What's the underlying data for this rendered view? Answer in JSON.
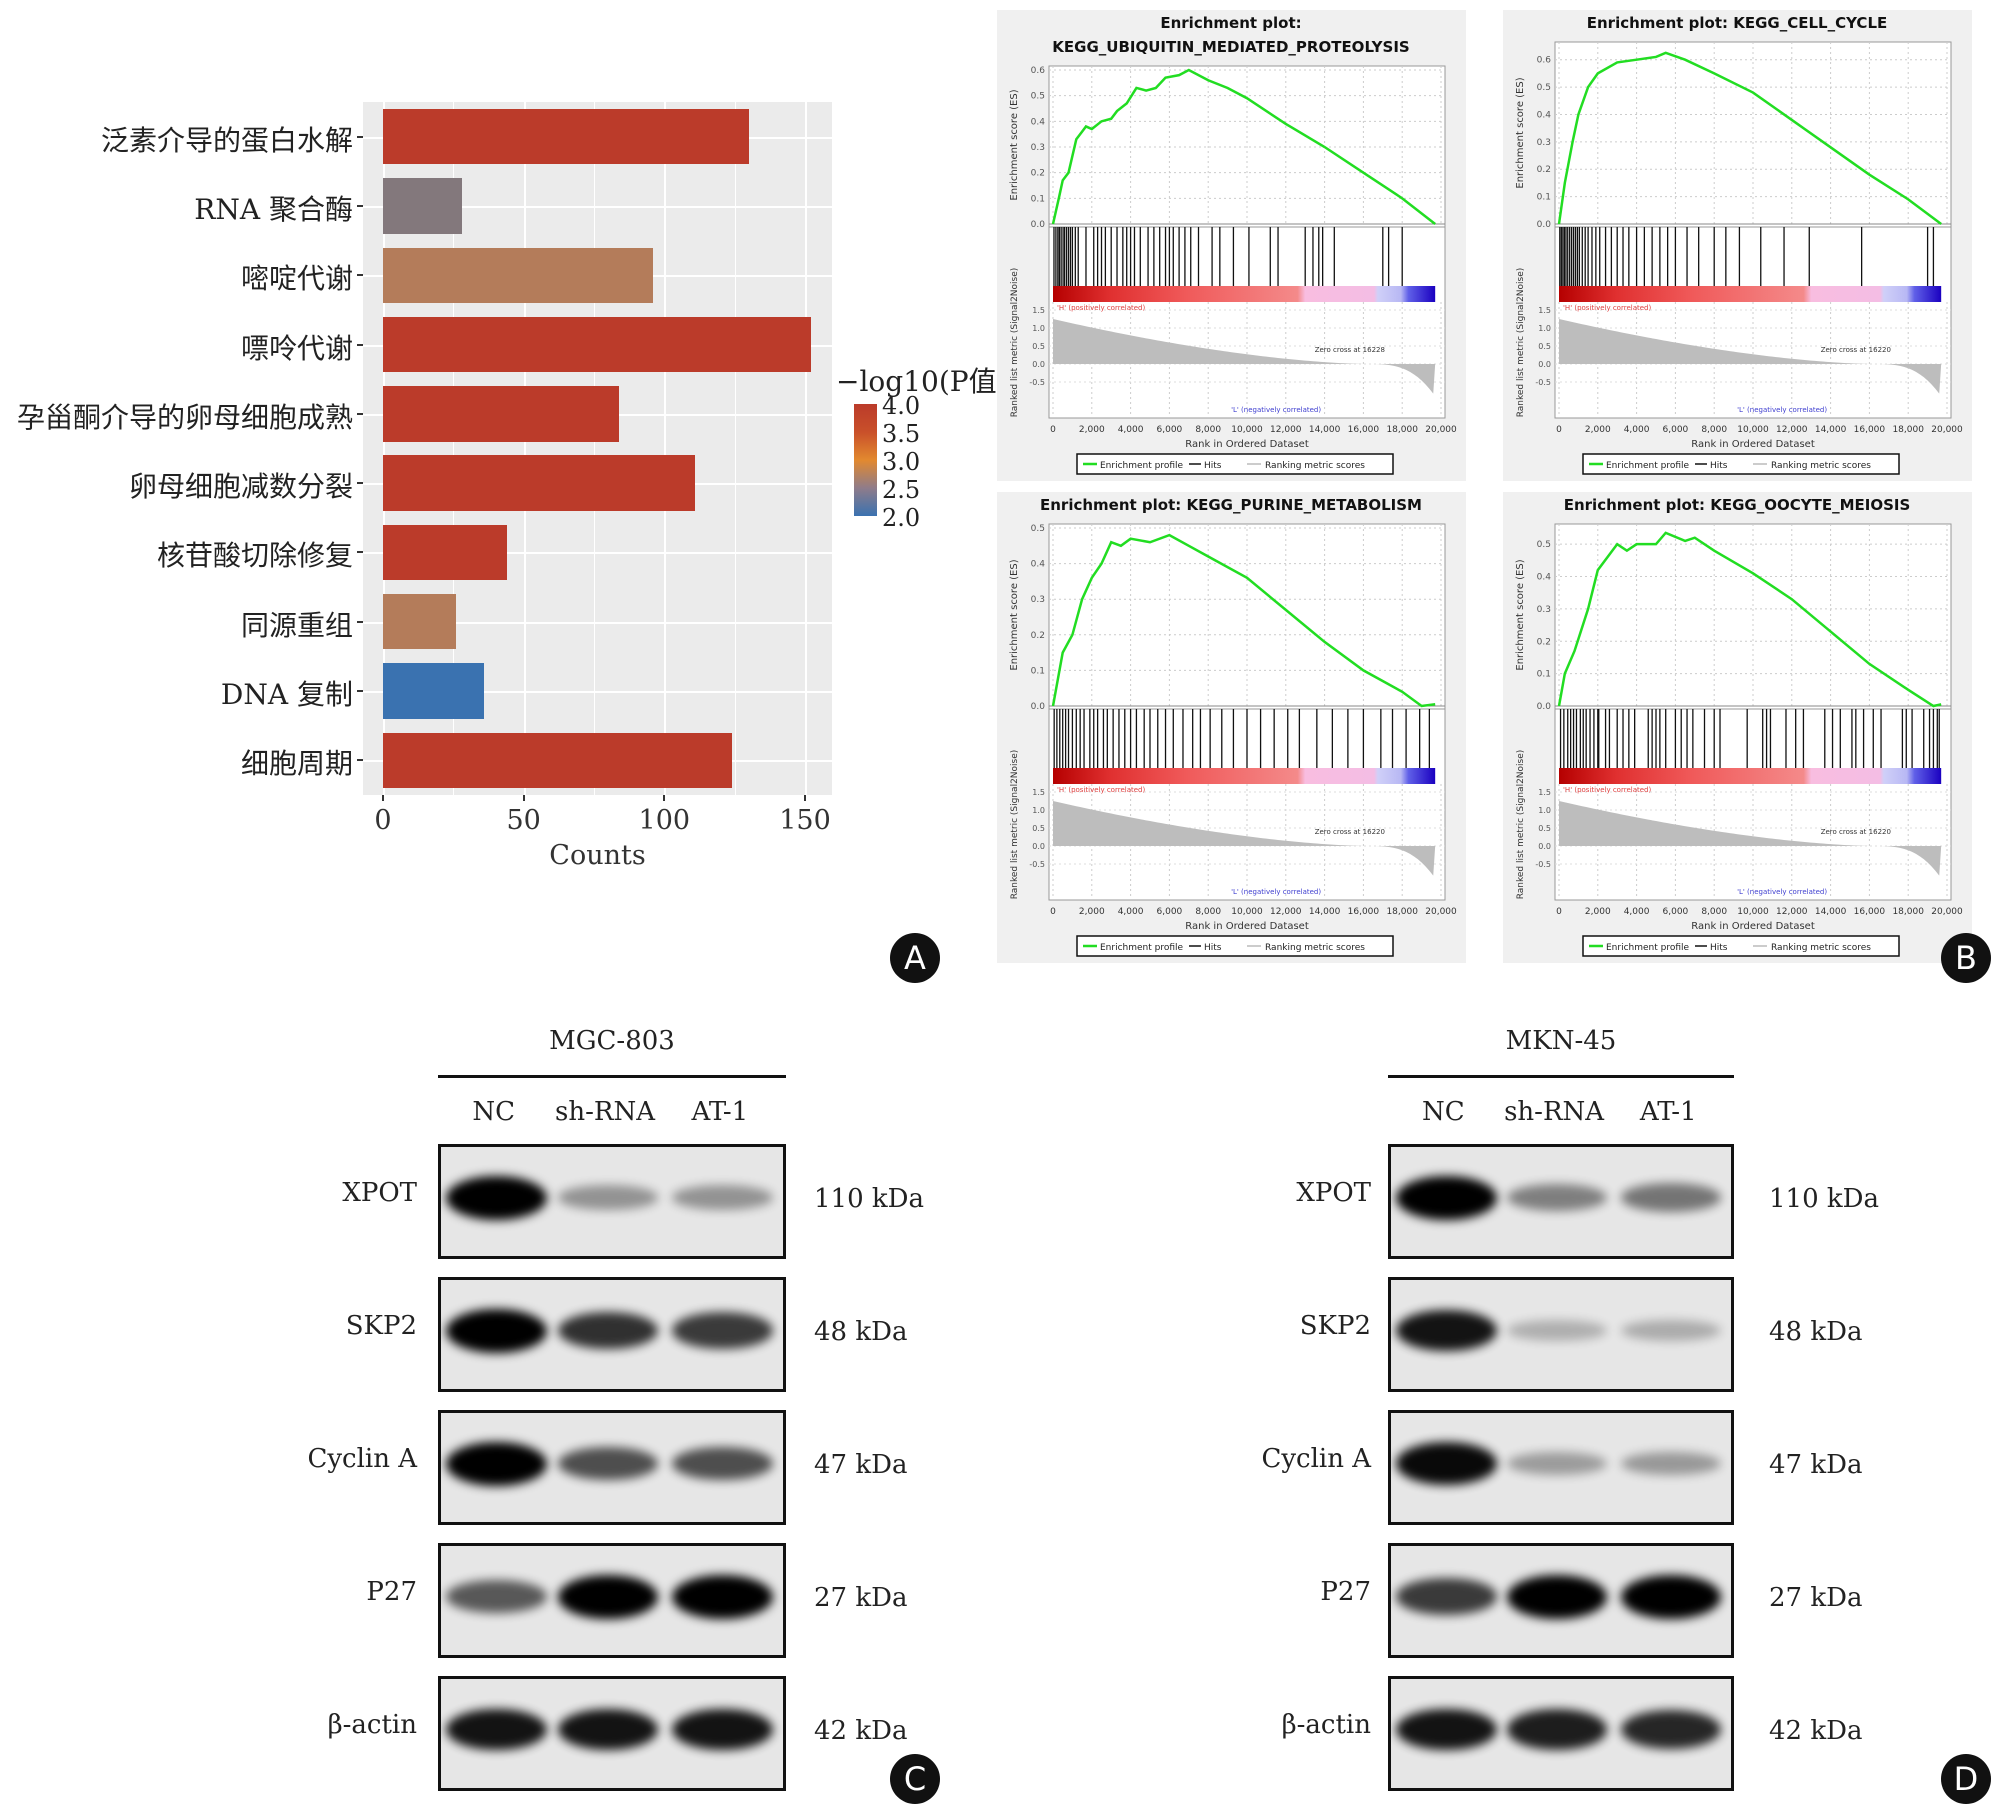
{
  "panel_labels": {
    "a": "A",
    "b": "B",
    "c": "C",
    "d": "D"
  },
  "chart_data": [
    {
      "type": "bar",
      "orientation": "horizontal",
      "categories": [
        "泛素介导的蛋白水解",
        "RNA 聚合酶",
        "嘧啶代谢",
        "嘌呤代谢",
        "孕甾酮介导的卵母细胞成熟",
        "卵母细胞减数分裂",
        "核苷酸切除修复",
        "同源重组",
        "DNA 复制",
        "细胞周期"
      ],
      "values": [
        130,
        28,
        96,
        152,
        84,
        111,
        44,
        26,
        36,
        124
      ],
      "color_values": [
        4.0,
        2.6,
        3.0,
        4.0,
        4.0,
        4.0,
        4.0,
        3.0,
        2.0,
        4.0
      ],
      "xlabel": "Counts",
      "xlim": [
        -7,
        160
      ],
      "xticks": [
        "0",
        "50",
        "100",
        "150"
      ],
      "xtick_values": [
        0,
        50,
        100,
        150
      ],
      "legend": {
        "title": "−log10(P值)",
        "ticks": [
          "4.0",
          "3.5",
          "3.0",
          "2.5",
          "2.0"
        ],
        "range": [
          2.0,
          4.0
        ],
        "placement": "right"
      },
      "colors": {
        "high": "#bb3b2a",
        "mid": "#e2892f",
        "low": "#3a72b0",
        "panel_bg": "#ebebeb"
      }
    },
    {
      "type": "line",
      "title_lines": [
        "Enrichment plot:",
        "KEGG_UBIQUITIN_MEDIATED_PROTEOLYSIS"
      ],
      "ylabel_top": "Enrichment score (ES)",
      "ylabel_bottom": "Ranked list metric (Signal2Noise)",
      "xlabel": "Rank in Ordered Dataset",
      "yticks": [
        "0.0",
        "0.1",
        "0.2",
        "0.3",
        "0.4",
        "0.5",
        "0.6"
      ],
      "ymax": 0.6,
      "metric_ticks": [
        "1.5",
        "1.0",
        "0.5",
        "0.0",
        "-0.5"
      ],
      "xticks": [
        "0",
        "2,000",
        "4,000",
        "6,000",
        "8,000",
        "10,000",
        "12,000",
        "14,000",
        "16,000",
        "18,000",
        "20,000"
      ],
      "pos_label": "'H' (positively correlated)",
      "neg_label": "'L' (negatively correlated)",
      "zero_cross": "Zero cross at 16228",
      "legend": [
        "Enrichment profile",
        "Hits",
        "Ranking metric scores"
      ],
      "es": [
        [
          0,
          0
        ],
        [
          300,
          0.1
        ],
        [
          500,
          0.17
        ],
        [
          800,
          0.2
        ],
        [
          1200,
          0.33
        ],
        [
          1500,
          0.36
        ],
        [
          1700,
          0.38
        ],
        [
          2000,
          0.37
        ],
        [
          2500,
          0.4
        ],
        [
          3000,
          0.41
        ],
        [
          3300,
          0.44
        ],
        [
          3800,
          0.47
        ],
        [
          4300,
          0.53
        ],
        [
          4800,
          0.52
        ],
        [
          5300,
          0.53
        ],
        [
          5800,
          0.57
        ],
        [
          6500,
          0.58
        ],
        [
          7000,
          0.6
        ],
        [
          8000,
          0.56
        ],
        [
          9000,
          0.53
        ],
        [
          10000,
          0.49
        ],
        [
          12000,
          0.39
        ],
        [
          14000,
          0.3
        ],
        [
          16000,
          0.2
        ],
        [
          18000,
          0.1
        ],
        [
          19700,
          0
        ]
      ],
      "hits": [
        50,
        150,
        250,
        330,
        420,
        520,
        600,
        700,
        800,
        900,
        1000,
        1150,
        1300,
        1700,
        2100,
        2300,
        2500,
        2700,
        3000,
        3300,
        3600,
        3800,
        4000,
        4200,
        4500,
        4900,
        5200,
        5500,
        5800,
        6000,
        6200,
        6500,
        6800,
        7100,
        7500,
        8200,
        8600,
        9300,
        10100,
        11200,
        11600,
        13000,
        13400,
        13700,
        13900,
        14500,
        17000,
        17300,
        18000
      ]
    },
    {
      "type": "line",
      "title_lines": [
        "Enrichment plot: KEGG_CELL_CYCLE"
      ],
      "ylabel_top": "Enrichment score (ES)",
      "ylabel_bottom": "Ranked list metric (Signal2Noise)",
      "xlabel": "Rank in Ordered Dataset",
      "yticks": [
        "0.0",
        "0.1",
        "0.2",
        "0.3",
        "0.4",
        "0.5",
        "0.6"
      ],
      "ymax": 0.65,
      "metric_ticks": [
        "1.5",
        "1.0",
        "0.5",
        "0.0",
        "-0.5"
      ],
      "xticks": [
        "0",
        "2,000",
        "4,000",
        "6,000",
        "8,000",
        "10,000",
        "12,000",
        "14,000",
        "16,000",
        "18,000",
        "20,000"
      ],
      "pos_label": "'H' (positively correlated)",
      "neg_label": "'L' (negatively correlated)",
      "zero_cross": "Zero cross at 16220",
      "legend": [
        "Enrichment profile",
        "Hits",
        "Ranking metric scores"
      ],
      "es": [
        [
          0,
          0
        ],
        [
          300,
          0.15
        ],
        [
          700,
          0.3
        ],
        [
          1000,
          0.4
        ],
        [
          1500,
          0.5
        ],
        [
          2000,
          0.55
        ],
        [
          3000,
          0.59
        ],
        [
          4000,
          0.6
        ],
        [
          5000,
          0.61
        ],
        [
          5500,
          0.625
        ],
        [
          6500,
          0.6
        ],
        [
          8000,
          0.55
        ],
        [
          10000,
          0.48
        ],
        [
          12000,
          0.38
        ],
        [
          14000,
          0.28
        ],
        [
          16000,
          0.18
        ],
        [
          18000,
          0.09
        ],
        [
          19700,
          0
        ]
      ],
      "hits": [
        40,
        120,
        200,
        280,
        360,
        450,
        550,
        650,
        750,
        850,
        950,
        1050,
        1200,
        1350,
        1500,
        1700,
        1900,
        2100,
        2400,
        2700,
        3000,
        3300,
        3600,
        4000,
        4400,
        4800,
        5200,
        5600,
        6000,
        6600,
        7200,
        8000,
        8600,
        9300,
        10400,
        11600,
        12900,
        15600,
        19000,
        19300
      ]
    },
    {
      "type": "line",
      "title_lines": [
        "Enrichment plot: KEGG_PURINE_METABOLISM"
      ],
      "ylabel_top": "Enrichment score (ES)",
      "ylabel_bottom": "Ranked list metric (Signal2Noise)",
      "xlabel": "Rank in Ordered Dataset",
      "yticks": [
        "0.0",
        "0.1",
        "0.2",
        "0.3",
        "0.4",
        "0.5"
      ],
      "ymax": 0.5,
      "metric_ticks": [
        "1.5",
        "1.0",
        "0.5",
        "0.0",
        "-0.5"
      ],
      "xticks": [
        "0",
        "2,000",
        "4,000",
        "6,000",
        "8,000",
        "10,000",
        "12,000",
        "14,000",
        "16,000",
        "18,000",
        "20,000"
      ],
      "pos_label": "'H' (positively correlated)",
      "neg_label": "'L' (negatively correlated)",
      "zero_cross": "Zero cross at 16220",
      "legend": [
        "Enrichment profile",
        "Hits",
        "Ranking metric scores"
      ],
      "es": [
        [
          0,
          0
        ],
        [
          500,
          0.15
        ],
        [
          1000,
          0.2
        ],
        [
          1500,
          0.3
        ],
        [
          2000,
          0.36
        ],
        [
          2500,
          0.4
        ],
        [
          3000,
          0.46
        ],
        [
          3500,
          0.45
        ],
        [
          4000,
          0.47
        ],
        [
          5000,
          0.46
        ],
        [
          6000,
          0.48
        ],
        [
          7000,
          0.45
        ],
        [
          8000,
          0.42
        ],
        [
          10000,
          0.36
        ],
        [
          12000,
          0.27
        ],
        [
          14000,
          0.18
        ],
        [
          16000,
          0.1
        ],
        [
          18000,
          0.04
        ],
        [
          19000,
          0
        ],
        [
          19700,
          0.005
        ]
      ],
      "hits": [
        60,
        200,
        350,
        500,
        650,
        800,
        1000,
        1200,
        1400,
        1600,
        1900,
        2100,
        2300,
        2600,
        2800,
        3100,
        3400,
        3700,
        4000,
        4300,
        4700,
        5000,
        5400,
        5800,
        6200,
        6700,
        7200,
        7600,
        8100,
        8700,
        9300,
        10000,
        10700,
        11400,
        12100,
        12700,
        13600,
        14400,
        15200,
        16000,
        16900,
        17500,
        18200,
        18900,
        19400
      ]
    },
    {
      "type": "line",
      "title_lines": [
        "Enrichment plot: KEGG_OOCYTE_MEIOSIS"
      ],
      "ylabel_top": "Enrichment score (ES)",
      "ylabel_bottom": "Ranked list metric (Signal2Noise)",
      "xlabel": "Rank in Ordered Dataset",
      "yticks": [
        "0.0",
        "0.1",
        "0.2",
        "0.3",
        "0.4",
        "0.5"
      ],
      "ymax": 0.55,
      "metric_ticks": [
        "1.5",
        "1.0",
        "0.5",
        "0.0",
        "-0.5"
      ],
      "xticks": [
        "0",
        "2,000",
        "4,000",
        "6,000",
        "8,000",
        "10,000",
        "12,000",
        "14,000",
        "16,000",
        "18,000",
        "20,000"
      ],
      "pos_label": "'H' (positively correlated)",
      "neg_label": "'L' (negatively correlated)",
      "zero_cross": "Zero cross at 16220",
      "legend": [
        "Enrichment profile",
        "Hits",
        "Ranking metric scores"
      ],
      "es": [
        [
          0,
          0
        ],
        [
          300,
          0.1
        ],
        [
          800,
          0.17
        ],
        [
          1500,
          0.3
        ],
        [
          2000,
          0.42
        ],
        [
          2500,
          0.46
        ],
        [
          3000,
          0.5
        ],
        [
          3500,
          0.48
        ],
        [
          4000,
          0.5
        ],
        [
          5000,
          0.5
        ],
        [
          5500,
          0.535
        ],
        [
          6500,
          0.51
        ],
        [
          7000,
          0.52
        ],
        [
          8000,
          0.48
        ],
        [
          10000,
          0.41
        ],
        [
          12000,
          0.33
        ],
        [
          14000,
          0.23
        ],
        [
          16000,
          0.13
        ],
        [
          18000,
          0.05
        ],
        [
          19300,
          0
        ],
        [
          19700,
          0.005
        ]
      ],
      "hits": [
        80,
        250,
        450,
        600,
        750,
        900,
        1100,
        1250,
        1400,
        1600,
        1800,
        2000,
        2050,
        2400,
        2600,
        3000,
        3300,
        3600,
        3900,
        4600,
        4800,
        5000,
        5200,
        5500,
        6000,
        6300,
        6600,
        6900,
        7500,
        8000,
        8300,
        9700,
        10500,
        10700,
        10900,
        11700,
        12200,
        12600,
        13700,
        14100,
        14500,
        15100,
        15300,
        15700,
        16200,
        16600,
        17700,
        17900,
        18200,
        18800,
        19100,
        19300,
        19500,
        19600
      ]
    }
  ],
  "western_blots": [
    {
      "title": "MGC-803",
      "lanes": [
        "NC",
        "sh-RNA",
        "AT-1"
      ],
      "rows": [
        {
          "protein": "XPOT",
          "kda": "110 kDa",
          "intensity": [
            1.0,
            0.25,
            0.25
          ]
        },
        {
          "protein": "SKP2",
          "kda": "48 kDa",
          "intensity": [
            1.0,
            0.75,
            0.7
          ]
        },
        {
          "protein": "Cyclin A",
          "kda": "47 kDa",
          "intensity": [
            1.0,
            0.6,
            0.6
          ]
        },
        {
          "protein": "P27",
          "kda": "27 kDa",
          "intensity": [
            0.55,
            1.0,
            1.0
          ]
        },
        {
          "protein": "β-actin",
          "kda": "42 kDa",
          "intensity": [
            0.9,
            0.9,
            0.9
          ]
        }
      ]
    },
    {
      "title": "MKN-45",
      "lanes": [
        "NC",
        "sh-RNA",
        "AT-1"
      ],
      "rows": [
        {
          "protein": "XPOT",
          "kda": "110 kDa",
          "intensity": [
            1.0,
            0.35,
            0.4
          ]
        },
        {
          "protein": "SKP2",
          "kda": "48 kDa",
          "intensity": [
            0.9,
            0.1,
            0.12
          ]
        },
        {
          "protein": "Cyclin A",
          "kda": "47 kDa",
          "intensity": [
            0.95,
            0.2,
            0.22
          ]
        },
        {
          "protein": "P27",
          "kda": "27 kDa",
          "intensity": [
            0.7,
            1.0,
            1.0
          ]
        },
        {
          "protein": "β-actin",
          "kda": "42 kDa",
          "intensity": [
            0.9,
            0.85,
            0.8
          ]
        }
      ]
    }
  ]
}
